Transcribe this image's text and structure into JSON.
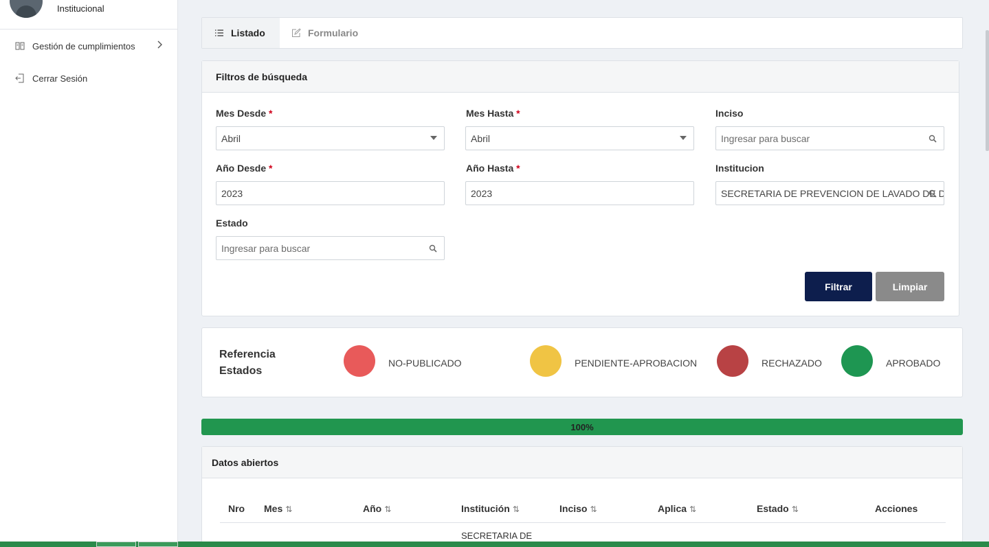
{
  "sidebar": {
    "user_role": "Institucional",
    "items": [
      {
        "label": "Gestión de cumplimientos",
        "icon": "book-icon"
      },
      {
        "label": "Cerrar Sesión",
        "icon": "logout-icon"
      }
    ]
  },
  "tabs": [
    {
      "label": "Listado",
      "icon": "list-icon",
      "active": true
    },
    {
      "label": "Formulario",
      "icon": "edit-icon",
      "active": false
    }
  ],
  "filters": {
    "title": "Filtros de búsqueda",
    "mes_desde": {
      "label": "Mes Desde",
      "value": "Abril"
    },
    "mes_hasta": {
      "label": "Mes Hasta",
      "value": "Abril"
    },
    "inciso": {
      "label": "Inciso",
      "placeholder": "Ingresar para buscar"
    },
    "anio_desde": {
      "label": "Año Desde",
      "value": "2023"
    },
    "anio_hasta": {
      "label": "Año Hasta",
      "value": "2023"
    },
    "institucion": {
      "label": "Institucion",
      "value": "SECRETARIA DE PREVENCION DE LAVADO DE DINERO"
    },
    "estado": {
      "label": "Estado",
      "placeholder": "Ingresar para buscar"
    },
    "required_mark": "*",
    "filter_button": "Filtrar",
    "clear_button": "Limpiar"
  },
  "legend": {
    "title_line1": "Referencia",
    "title_line2": "Estados",
    "items": [
      {
        "label": "NO-PUBLICADO",
        "color": "#e85a5a"
      },
      {
        "label": "PENDIENTE-APROBACION",
        "color": "#f0c444"
      },
      {
        "label": "RECHAZADO",
        "color": "#b84244"
      },
      {
        "label": "APROBADO",
        "color": "#1e9652"
      }
    ]
  },
  "progress": {
    "value": 1.0,
    "label": "100%",
    "color": "#21964f"
  },
  "datos": {
    "title": "Datos abiertos",
    "columns": [
      {
        "label": "Nro",
        "sortable": false
      },
      {
        "label": "Mes",
        "sortable": true
      },
      {
        "label": "Año",
        "sortable": true
      },
      {
        "label": "Institución",
        "sortable": true
      },
      {
        "label": "Inciso",
        "sortable": true
      },
      {
        "label": "Aplica",
        "sortable": true
      },
      {
        "label": "Estado",
        "sortable": true
      },
      {
        "label": "Acciones",
        "sortable": false
      }
    ],
    "sort_glyph": "⇅",
    "first_row_institucion": "SECRETARIA DE"
  }
}
